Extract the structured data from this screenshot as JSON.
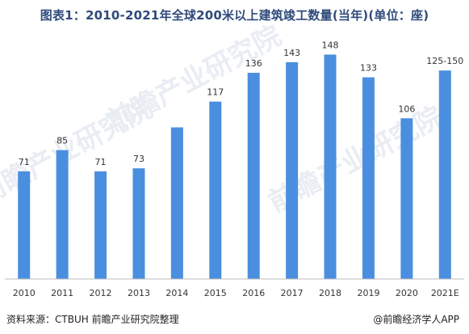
{
  "title": "图表1：2010-2021年全球200米以上建筑竣工数量(当年)(单位：座)",
  "source": "资料来源：CTBUH 前瞻产业研究院整理",
  "brand": "@前瞻经济学人APP",
  "watermark": "前瞻产业研究院",
  "colors": {
    "bar": "#4a8fdf",
    "title": "#2f4a7a",
    "axis": "#bdbdbd",
    "label": "#333333"
  },
  "chart_data": {
    "type": "bar",
    "title": "图表1：2010-2021年全球200米以上建筑竣工数量(当年)(单位：座)",
    "categories": [
      "2010",
      "2011",
      "2012",
      "2013",
      "2014",
      "2015",
      "2016",
      "2017",
      "2018",
      "2019",
      "2020",
      "2021E"
    ],
    "values": [
      71,
      85,
      71,
      73,
      100,
      117,
      136,
      143,
      148,
      133,
      106,
      137.5
    ],
    "data_labels": [
      "71",
      "85",
      "71",
      "73",
      "",
      "117",
      "136",
      "143",
      "148",
      "133",
      "106",
      "125-150"
    ],
    "ylim": [
      0,
      152
    ],
    "grid": false,
    "legend": "none"
  }
}
